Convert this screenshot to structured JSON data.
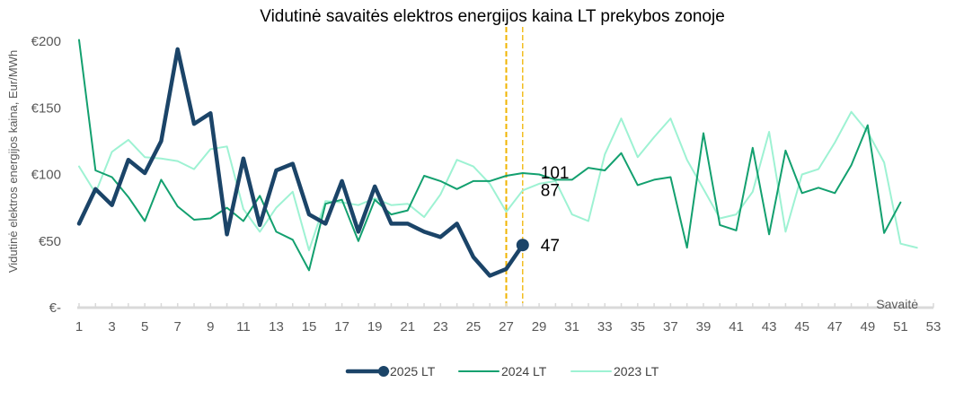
{
  "chart_data": {
    "type": "line",
    "title": "Vidutinė savaitės elektros energijos kaina LT prekybos zonoje",
    "xlabel": "Savaitė",
    "ylabel": "Vidutinė elektros energijos kaina, Eur/MWh",
    "x_tick_labels": [
      "1",
      "3",
      "5",
      "7",
      "9",
      "11",
      "13",
      "15",
      "17",
      "19",
      "21",
      "23",
      "25",
      "27",
      "29",
      "31",
      "33",
      "35",
      "37",
      "39",
      "41",
      "43",
      "45",
      "47",
      "49",
      "51",
      "53"
    ],
    "y_ticks": [
      0,
      50,
      100,
      150,
      200
    ],
    "y_tick_labels": [
      "€-",
      "€50",
      "€100",
      "€150",
      "€200"
    ],
    "xlim": [
      1,
      53
    ],
    "ylim": [
      0,
      200
    ],
    "grid": false,
    "legend_position": "bottom",
    "reference_lines_x": [
      27,
      28
    ],
    "reference_line_color": "#f0b400",
    "series": [
      {
        "name": "2025 LT",
        "color": "#1b4468",
        "values": [
          63,
          89,
          77,
          111,
          101,
          125,
          194,
          138,
          146,
          55,
          112,
          62,
          103,
          108,
          70,
          63,
          95,
          57,
          91,
          63,
          63,
          57,
          53,
          63,
          38,
          24,
          29,
          47
        ]
      },
      {
        "name": "2024 LT",
        "color": "#13a06f",
        "values": [
          201,
          103,
          98,
          83,
          65,
          96,
          76,
          66,
          67,
          75,
          65,
          84,
          57,
          51,
          28,
          78,
          81,
          50,
          81,
          70,
          73,
          99,
          95,
          89,
          95,
          95,
          99,
          101,
          100,
          96,
          96,
          105,
          103,
          116,
          92,
          96,
          98,
          45,
          131,
          62,
          58,
          120,
          55,
          118,
          86,
          90,
          86,
          107,
          137,
          56,
          79
        ]
      },
      {
        "name": "2023 LT",
        "color": "#9ef2d3",
        "values": [
          106,
          86,
          117,
          126,
          113,
          112,
          110,
          104,
          119,
          121,
          74,
          57,
          75,
          87,
          43,
          80,
          79,
          77,
          82,
          77,
          78,
          68,
          85,
          111,
          106,
          93,
          72,
          88,
          93,
          95,
          70,
          65,
          115,
          142,
          113,
          128,
          142,
          111,
          89,
          67,
          70,
          87,
          132,
          57,
          100,
          104,
          124,
          147,
          132,
          109,
          48,
          45
        ]
      }
    ],
    "point_labels": [
      {
        "series": "2024 LT",
        "text": "101"
      },
      {
        "series": "2023 LT",
        "text": "87"
      },
      {
        "series": "2025 LT",
        "text": "47"
      }
    ]
  }
}
